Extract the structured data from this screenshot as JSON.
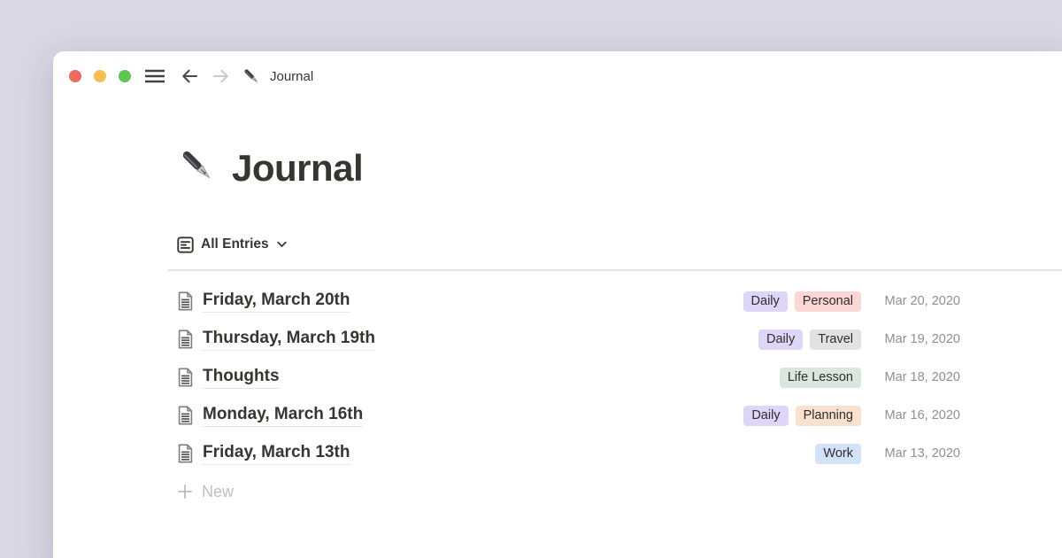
{
  "colors": {
    "background": "#D8D7E3",
    "window": "#FFFFFF",
    "traffic_close": "#EC6A5E",
    "traffic_minimize": "#F4BE50",
    "traffic_zoom": "#5FC454",
    "date_text": "#8F8E93",
    "tags": {
      "purple": "#DED5F8",
      "pink": "#FAD7D5",
      "gray": "#E3E2E0",
      "green": "#DBE7DE",
      "orange": "#FAE1CF",
      "blue": "#D3E2F8"
    }
  },
  "toolbar": {
    "title": "Journal"
  },
  "page": {
    "icon": "fountain-pen",
    "title": "Journal",
    "view_label": "All Entries",
    "new_label": "New",
    "entries": [
      {
        "name": "Friday, March 20th",
        "tags": [
          {
            "label": "Daily",
            "color": "purple"
          },
          {
            "label": "Personal",
            "color": "pink"
          }
        ],
        "date": "Mar 20, 2020"
      },
      {
        "name": "Thursday, March 19th",
        "tags": [
          {
            "label": "Daily",
            "color": "purple"
          },
          {
            "label": "Travel",
            "color": "gray"
          }
        ],
        "date": "Mar 19, 2020"
      },
      {
        "name": "Thoughts",
        "tags": [
          {
            "label": "Life Lesson",
            "color": "green"
          }
        ],
        "date": "Mar 18, 2020"
      },
      {
        "name": "Monday, March 16th",
        "tags": [
          {
            "label": "Daily",
            "color": "purple"
          },
          {
            "label": "Planning",
            "color": "orange"
          }
        ],
        "date": "Mar 16, 2020"
      },
      {
        "name": "Friday, March 13th",
        "tags": [
          {
            "label": "Work",
            "color": "blue"
          }
        ],
        "date": "Mar 13, 2020"
      }
    ]
  }
}
